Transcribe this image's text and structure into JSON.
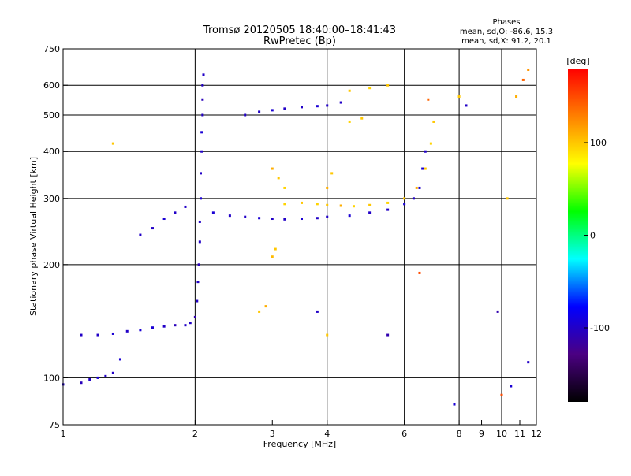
{
  "chart_data": {
    "type": "scatter",
    "title": "Tromsø 20120505 18:40:00–18:41:43",
    "subtitle": "RwPretec (Bp)",
    "xlabel": "Frequency [MHz]",
    "ylabel": "Stationary phase Virtual Height [km]",
    "x_scale": "log",
    "y_scale": "log",
    "xlim": [
      1,
      12
    ],
    "ylim": [
      75,
      750
    ],
    "x_ticks": [
      1,
      2,
      3,
      4,
      6,
      8,
      10,
      12
    ],
    "x_tick_labels": [
      "1",
      "2",
      "3",
      "4",
      "6",
      "8",
      "9",
      "10",
      "11",
      "12"
    ],
    "x_minor_ticks": [
      9,
      11
    ],
    "y_ticks": [
      75,
      100,
      200,
      300,
      400,
      500,
      600,
      750
    ],
    "y_tick_labels": [
      "75",
      "100",
      "200",
      "300",
      "400",
      "500",
      "600",
      "750"
    ],
    "gridlines_x": [
      2,
      4,
      6,
      8,
      10
    ],
    "gridlines_y": [
      100,
      200,
      300,
      400,
      500,
      600
    ],
    "grid": true,
    "legend": {
      "title": "Phases",
      "lines": [
        "mean, sd,O: -86.6, 15.3",
        "mean, sd,X:  91.2, 20.1"
      ],
      "placement": "top-right"
    },
    "colorbar": {
      "label": "[deg]",
      "ticks": [
        100,
        0,
        -100
      ],
      "tick_labels": [
        "100",
        "0",
        "-100"
      ],
      "range": [
        -180,
        180
      ],
      "colors": [
        "#000000",
        "#4b0082",
        "#0000ff",
        "#00ffff",
        "#00ff00",
        "#ffff00",
        "#ff8000",
        "#ff0000"
      ]
    },
    "series": [
      {
        "points": [
          [
            1.0,
            96,
            -100
          ],
          [
            1.1,
            97,
            -105
          ],
          [
            1.15,
            99,
            -100
          ],
          [
            1.2,
            100,
            -95
          ],
          [
            1.25,
            101,
            -100
          ],
          [
            1.3,
            103,
            -100
          ],
          [
            1.35,
            112,
            -95
          ],
          [
            1.1,
            130,
            -100
          ],
          [
            1.2,
            130,
            -100
          ],
          [
            1.3,
            131,
            -95
          ],
          [
            1.4,
            133,
            -100
          ],
          [
            1.5,
            134,
            -95
          ],
          [
            1.6,
            136,
            -95
          ],
          [
            1.7,
            137,
            -100
          ],
          [
            1.8,
            138,
            -105
          ],
          [
            1.9,
            138,
            -100
          ],
          [
            1.95,
            140,
            -100
          ],
          [
            2.0,
            145,
            -110
          ],
          [
            2.02,
            160,
            -100
          ],
          [
            2.03,
            180,
            -100
          ],
          [
            2.04,
            200,
            -105
          ],
          [
            2.05,
            230,
            -100
          ],
          [
            2.05,
            260,
            -100
          ],
          [
            2.06,
            300,
            -95
          ],
          [
            2.06,
            350,
            -100
          ],
          [
            2.07,
            400,
            -100
          ],
          [
            2.07,
            450,
            -95
          ],
          [
            2.08,
            500,
            -100
          ],
          [
            2.08,
            550,
            -105
          ],
          [
            2.08,
            600,
            -100
          ],
          [
            2.09,
            640,
            -100
          ],
          [
            1.5,
            240,
            -100
          ],
          [
            1.6,
            250,
            -100
          ],
          [
            1.7,
            265,
            -95
          ],
          [
            1.8,
            275,
            -100
          ],
          [
            1.9,
            285,
            -100
          ],
          [
            2.2,
            275,
            -95
          ],
          [
            2.4,
            270,
            -100
          ],
          [
            2.6,
            268,
            -100
          ],
          [
            2.8,
            266,
            -95
          ],
          [
            3.0,
            265,
            -100
          ],
          [
            3.2,
            264,
            -100
          ],
          [
            3.5,
            265,
            -95
          ],
          [
            3.8,
            266,
            -100
          ],
          [
            4.0,
            268,
            -100
          ],
          [
            4.5,
            270,
            -95
          ],
          [
            5.0,
            275,
            -100
          ],
          [
            5.5,
            280,
            -100
          ],
          [
            6.0,
            290,
            -95
          ],
          [
            6.3,
            300,
            -100
          ],
          [
            6.5,
            320,
            -100
          ],
          [
            6.6,
            360,
            -95
          ],
          [
            6.7,
            400,
            -100
          ],
          [
            2.6,
            500,
            -100
          ],
          [
            2.8,
            510,
            -100
          ],
          [
            3.0,
            515,
            -95
          ],
          [
            3.2,
            520,
            -100
          ],
          [
            3.5,
            525,
            -100
          ],
          [
            3.8,
            528,
            -95
          ],
          [
            4.0,
            530,
            -100
          ],
          [
            4.3,
            540,
            -100
          ],
          [
            3.2,
            290,
            95
          ],
          [
            3.5,
            292,
            100
          ],
          [
            3.8,
            290,
            95
          ],
          [
            4.0,
            288,
            100
          ],
          [
            4.3,
            287,
            110
          ],
          [
            4.6,
            286,
            95
          ],
          [
            5.0,
            288,
            100
          ],
          [
            5.5,
            292,
            95
          ],
          [
            6.0,
            300,
            100
          ],
          [
            6.4,
            320,
            110
          ],
          [
            6.7,
            360,
            100
          ],
          [
            6.9,
            420,
            95
          ],
          [
            7.0,
            480,
            100
          ],
          [
            3.0,
            360,
            110
          ],
          [
            3.1,
            340,
            100
          ],
          [
            3.2,
            320,
            95
          ],
          [
            3.0,
            210,
            105
          ],
          [
            3.05,
            220,
            100
          ],
          [
            2.8,
            150,
            100
          ],
          [
            2.9,
            155,
            110
          ],
          [
            4.5,
            580,
            100
          ],
          [
            5.0,
            590,
            95
          ],
          [
            5.5,
            600,
            100
          ],
          [
            4.0,
            320,
            110
          ],
          [
            4.1,
            350,
            100
          ],
          [
            4.5,
            480,
            95
          ],
          [
            4.8,
            490,
            100
          ],
          [
            10.3,
            300,
            100
          ],
          [
            10.8,
            560,
            110
          ],
          [
            11.2,
            620,
            140
          ],
          [
            11.5,
            660,
            120
          ],
          [
            8.0,
            560,
            100
          ],
          [
            8.3,
            530,
            -100
          ],
          [
            6.8,
            550,
            140
          ],
          [
            6.5,
            190,
            150
          ],
          [
            5.5,
            130,
            -110
          ],
          [
            4.0,
            130,
            100
          ],
          [
            3.8,
            150,
            -100
          ],
          [
            10.0,
            90,
            150
          ],
          [
            10.5,
            95,
            -95
          ],
          [
            11.5,
            110,
            -100
          ],
          [
            9.8,
            150,
            -110
          ],
          [
            7.8,
            85,
            -95
          ],
          [
            1.3,
            420,
            100
          ]
        ]
      }
    ]
  }
}
